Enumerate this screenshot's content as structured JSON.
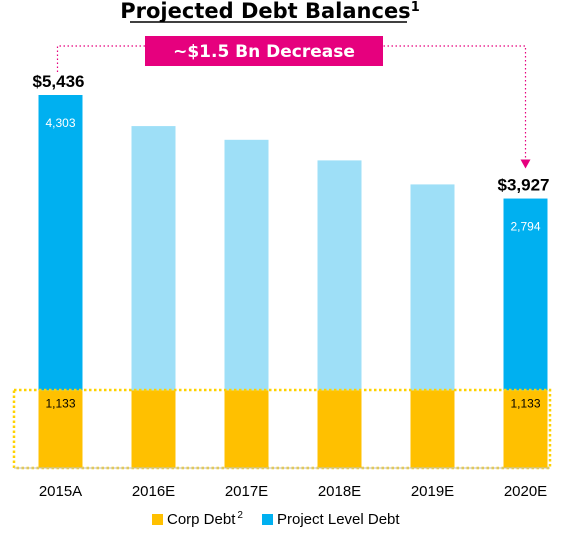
{
  "title": "Projected Debt Balances",
  "title_footnote": "1",
  "callout": "~$1.5 Bn Decrease",
  "legend": [
    {
      "key": "corp",
      "label": "Corp Debt",
      "footnote": "2"
    },
    {
      "key": "project",
      "label": "Project Level Debt",
      "footnote": ""
    }
  ],
  "colors": {
    "corp": "#FFC000",
    "project": "#00B0F0",
    "project_projected": "#9EDFF7",
    "callout": "#E6007E",
    "dotted_box": "#FFD200"
  },
  "chart_data": {
    "type": "bar",
    "stacked": true,
    "categories": [
      "2015A",
      "2016E",
      "2017E",
      "2018E",
      "2019E",
      "2020E"
    ],
    "series": [
      {
        "name": "Corp Debt",
        "values": [
          1133,
          1133,
          1133,
          1133,
          1133,
          1133
        ]
      },
      {
        "name": "Project Level Debt",
        "values": [
          4303,
          3850,
          3650,
          3350,
          3000,
          2794
        ]
      }
    ],
    "totals": [
      5436,
      4983,
      4783,
      4483,
      4133,
      3927
    ],
    "total_labels": [
      "$5,436",
      "",
      "",
      "",
      "",
      "$3,927"
    ],
    "corp_labels": [
      "1,133",
      "",
      "",
      "",
      "",
      "1,133"
    ],
    "project_labels": [
      "4,303",
      "",
      "",
      "",
      "",
      "2,794"
    ],
    "projected_lighter": [
      false,
      true,
      true,
      true,
      true,
      false
    ],
    "ylim": [
      0,
      5436
    ],
    "grid": false,
    "legend_position": "bottom"
  }
}
